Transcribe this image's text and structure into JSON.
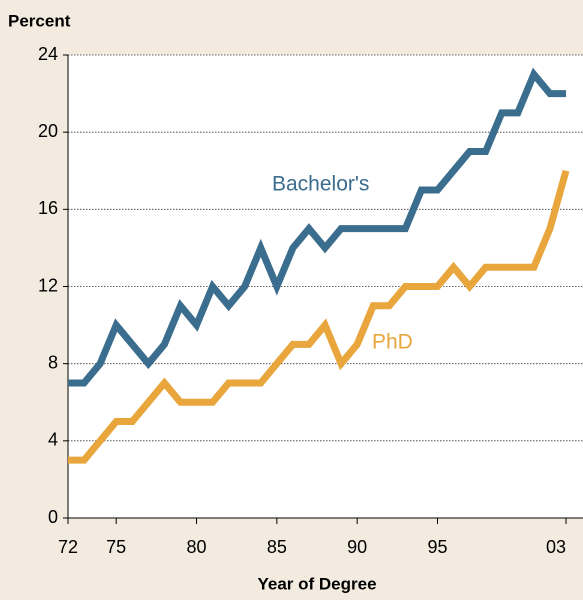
{
  "chart_data": {
    "type": "line",
    "title": "Percent",
    "x_label": "Year of Degree",
    "x": [
      1972,
      1973,
      1974,
      1975,
      1976,
      1977,
      1978,
      1979,
      1980,
      1981,
      1982,
      1983,
      1984,
      1985,
      1986,
      1987,
      1988,
      1989,
      1990,
      1991,
      1992,
      1993,
      1994,
      1995,
      1996,
      1997,
      1998,
      1999,
      2000,
      2001,
      2002,
      2003
    ],
    "series": [
      {
        "name": "Bachelor's",
        "color": "#3b6d8e",
        "values": [
          7,
          7,
          8,
          10,
          9,
          8,
          9,
          11,
          10,
          12,
          11,
          12,
          14,
          12,
          14,
          15,
          14,
          15,
          15,
          15,
          15,
          15,
          17,
          17,
          18,
          19,
          19,
          21,
          21,
          23,
          22,
          22
        ]
      },
      {
        "name": "PhD",
        "color": "#e8a63c",
        "values": [
          3,
          3,
          4,
          5,
          5,
          6,
          7,
          6,
          6,
          6,
          7,
          7,
          7,
          8,
          9,
          9,
          10,
          8,
          9,
          11,
          11,
          12,
          12,
          12,
          13,
          12,
          13,
          13,
          13,
          13,
          15,
          18
        ]
      }
    ],
    "xlim": [
      1972,
      2003
    ],
    "xticks": [
      {
        "value": 1972,
        "label": "72"
      },
      {
        "value": 1975,
        "label": "75"
      },
      {
        "value": 1980,
        "label": "80"
      },
      {
        "value": 1985,
        "label": "85"
      },
      {
        "value": 1990,
        "label": "90"
      },
      {
        "value": 1995,
        "label": "95"
      },
      {
        "value": 2003,
        "label": "03"
      }
    ],
    "ylim": [
      0,
      24
    ],
    "yticks": [
      0,
      4,
      8,
      12,
      16,
      20,
      24
    ],
    "grid": true
  }
}
